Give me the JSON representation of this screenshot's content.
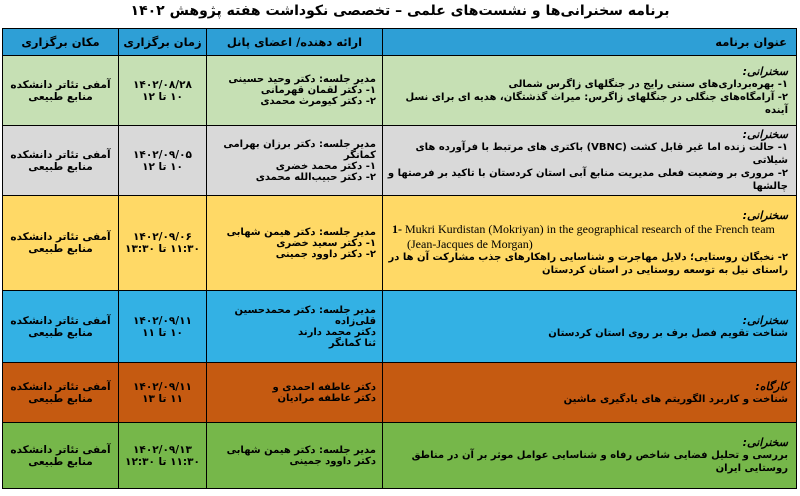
{
  "page_title": "برنامه سخنرانی‌ها و نشست‌های علمی – تخصصی نکوداشت هفته پژوهش ۱۴۰۲",
  "colors": {
    "header_bg": "#2E9FD6",
    "border": "#000000",
    "text": "#000000"
  },
  "table": {
    "headers": {
      "title": "عنوان برنامه",
      "panel": "ارائه دهنده/ اعضای پانل",
      "time": "زمان برگزاری",
      "place": "مکان برگزاری"
    },
    "rows": [
      {
        "color": "#C6E0B4",
        "category": "سخنرانی:",
        "items": [
          {
            "lang": "fa",
            "text": "۱- بهره‌برداری‌های سنتی رایج در جنگلهای زاگرس شمالی"
          },
          {
            "lang": "fa",
            "text": "۲- آرامگاه‌های جنگلی در جنگلهای زاگرس: میراث گذشتگان، هدیه ای برای نسل آینده"
          }
        ],
        "panel": [
          "مدیر جلسه: دکتر وحید حسینی",
          "۱- دکتر لقمان قهرمانی",
          "۲- دکتر کیومرث محمدی"
        ],
        "date": "۱۴۰۲/۰۸/۲۸",
        "time": "۱۰ تا ۱۲",
        "place": [
          "آمفی تئاتر دانشکده",
          "منابع طبیعی"
        ]
      },
      {
        "color": "#D9D9D9",
        "category": "سخنرانی:",
        "items": [
          {
            "lang": "fa",
            "text": "۱- حالت زنده اما غیر قابل کشت (VBNC) باکتری های مرتبط با فرآورده های شیلاتی"
          },
          {
            "lang": "fa",
            "text": "۲- مروری بر وضعیت فعلی مدیریت منابع آبی استان کردستان با تاکید بر فرصتها و چالشها"
          }
        ],
        "panel": [
          "مدیر جلسه: دکتر برزان بهرامی کمانگر",
          "۱- دکتر محمد خضری",
          "۲- دکتر حبیب‌الله محمدی"
        ],
        "date": "۱۴۰۲/۰۹/۰۵",
        "time": "۱۰ تا ۱۲",
        "place": [
          "آمفی تئاتر دانشکده",
          "منابع طبیعی"
        ]
      },
      {
        "color": "#FFD966",
        "category": "سخنرانی:",
        "items": [
          {
            "lang": "en",
            "prefix": "1-",
            "text": "Mukri Kurdistan (Mokriyan) in the geographical research of the French team (Jean-Jacques de Morgan)"
          },
          {
            "lang": "fa",
            "text": "۲- نخبگان روستایی؛ دلایل مهاجرت و شناسایی راهکارهای جذب مشارکت آن ها در راستای نیل به توسعه روستایی در استان کردستان"
          }
        ],
        "panel": [
          "مدیر جلسه: دکتر هیمن شهابی",
          "۱- دکتر سعید خضری",
          "۲- دکتر داوود جمینی"
        ],
        "date": "۱۴۰۲/۰۹/۰۶",
        "time": "۱۱:۳۰ تا ۱۳:۳۰",
        "place": [
          "آمفی تئاتر دانشکده",
          "منابع طبیعی"
        ]
      },
      {
        "color": "#33B1E4",
        "category": "سخنرانی:",
        "items": [
          {
            "lang": "fa",
            "text": "شناخت تقویم فصل برف بر روی استان کردستان"
          }
        ],
        "panel": [
          "مدیر جلسه: دکتر محمدحسین قلی‌زاده",
          "دکتر محمد دارند",
          "ثنا کمانگر"
        ],
        "date": "۱۴۰۲/۰۹/۱۱",
        "time": "۱۰ تا ۱۱",
        "place": [
          "آمفی تئاتر دانشکده",
          "منابع طبیعی"
        ]
      },
      {
        "color": "#C55A11",
        "category": "کارگاه:",
        "items": [
          {
            "lang": "fa",
            "text": "شناخت و کاربرد الگوریتم های یادگیری ماشین"
          }
        ],
        "panel": [
          "دکتر عاطفه احمدی و",
          "دکتر عاطفه مرادیان"
        ],
        "date": "۱۴۰۲/۰۹/۱۱",
        "time": "۱۱ تا ۱۳",
        "place": [
          "آمفی تئاتر دانشکده",
          "منابع طبیعی"
        ]
      },
      {
        "color": "#76B74A",
        "category": "سخنرانی:",
        "items": [
          {
            "lang": "fa",
            "text": "بررسی و تحلیل فضایی شاخص رفاه و شناسایی عوامل موثر بر آن در مناطق روستایی ایران"
          }
        ],
        "panel": [
          "مدیر جلسه: دکتر هیمن شهابی",
          "دکتر داوود جمینی"
        ],
        "date": "۱۴۰۲/۰۹/۱۳",
        "time": "۱۱:۳۰ تا ۱۲:۳۰",
        "place": [
          "آمفی تئاتر دانشکده",
          "منابع طبیعی"
        ]
      }
    ]
  }
}
